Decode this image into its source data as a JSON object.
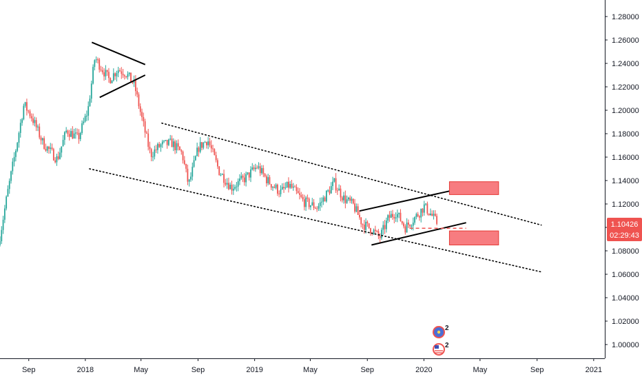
{
  "chart_data": {
    "type": "candlestick",
    "x_tick_labels": [
      "Sep",
      "2018",
      "May",
      "Sep",
      "2019",
      "May",
      "Sep",
      "2020",
      "May",
      "Sep",
      "2021"
    ],
    "x_tick_dates": [
      "2017-09-01",
      "2018-01-01",
      "2018-05-01",
      "2018-09-01",
      "2019-01-01",
      "2019-05-01",
      "2019-09-01",
      "2020-01-01",
      "2020-05-01",
      "2020-09-01",
      "2021-01-01"
    ],
    "y_tick_labels": [
      "1.28000",
      "1.26000",
      "1.24000",
      "1.22000",
      "1.20000",
      "1.18000",
      "1.16000",
      "1.14000",
      "1.12000",
      "1.10000",
      "1.08000",
      "1.06000",
      "1.04000",
      "1.02000",
      "1.00000"
    ],
    "ylim": [
      0.995,
      1.29
    ],
    "xlim": [
      "2017-07-01",
      "2021-01-25"
    ],
    "price_path": [
      [
        "2017-07-01",
        1.085
      ],
      [
        "2017-07-20",
        1.128
      ],
      [
        "2017-08-10",
        1.172
      ],
      [
        "2017-08-25",
        1.205
      ],
      [
        "2017-09-10",
        1.195
      ],
      [
        "2017-10-05",
        1.172
      ],
      [
        "2017-11-05",
        1.158
      ],
      [
        "2017-11-25",
        1.183
      ],
      [
        "2017-12-20",
        1.176
      ],
      [
        "2018-01-10",
        1.2
      ],
      [
        "2018-01-25",
        1.245
      ],
      [
        "2018-02-05",
        1.238
      ],
      [
        "2018-02-25",
        1.226
      ],
      [
        "2018-03-15",
        1.235
      ],
      [
        "2018-04-01",
        1.232
      ],
      [
        "2018-04-20",
        1.222
      ],
      [
        "2018-05-05",
        1.195
      ],
      [
        "2018-05-25",
        1.162
      ],
      [
        "2018-06-15",
        1.17
      ],
      [
        "2018-07-10",
        1.172
      ],
      [
        "2018-08-01",
        1.163
      ],
      [
        "2018-08-15",
        1.136
      ],
      [
        "2018-09-05",
        1.168
      ],
      [
        "2018-09-25",
        1.175
      ],
      [
        "2018-10-20",
        1.148
      ],
      [
        "2018-11-15",
        1.134
      ],
      [
        "2018-12-15",
        1.142
      ],
      [
        "2019-01-10",
        1.152
      ],
      [
        "2019-02-01",
        1.14
      ],
      [
        "2019-03-01",
        1.13
      ],
      [
        "2019-03-20",
        1.136
      ],
      [
        "2019-04-20",
        1.122
      ],
      [
        "2019-05-20",
        1.117
      ],
      [
        "2019-06-25",
        1.138
      ],
      [
        "2019-07-15",
        1.125
      ],
      [
        "2019-08-05",
        1.119
      ],
      [
        "2019-08-25",
        1.103
      ],
      [
        "2019-09-15",
        1.098
      ],
      [
        "2019-10-01",
        1.091
      ],
      [
        "2019-10-20",
        1.108
      ],
      [
        "2019-11-05",
        1.113
      ],
      [
        "2019-11-25",
        1.1
      ],
      [
        "2019-12-20",
        1.11
      ],
      [
        "2020-01-05",
        1.118
      ],
      [
        "2020-01-20",
        1.111
      ],
      [
        "2020-02-01",
        1.104
      ]
    ],
    "drawings": {
      "triangle_upper": [
        [
          "2018-01-15",
          1.258
        ],
        [
          "2018-05-10",
          1.239
        ]
      ],
      "triangle_lower": [
        [
          "2018-02-01",
          1.211
        ],
        [
          "2018-05-10",
          1.23
        ]
      ],
      "channel_upper": [
        [
          "2018-06-15",
          1.189
        ],
        [
          "2020-09-10",
          1.102
        ]
      ],
      "channel_lower": [
        [
          "2018-01-10",
          1.15
        ],
        [
          "2020-09-10",
          1.062
        ]
      ],
      "wedge_upper": [
        [
          "2019-08-15",
          1.114
        ],
        [
          "2020-02-25",
          1.131
        ]
      ],
      "wedge_lower": [
        [
          "2019-09-10",
          1.085
        ],
        [
          "2020-04-01",
          1.104
        ]
      ],
      "support_level": [
        [
          "2019-12-01",
          1.0993
        ],
        [
          "2020-04-01",
          1.0993
        ]
      ],
      "resistance_zone": [
        [
          "2020-02-25",
          1.139
        ],
        [
          "2020-06-10",
          1.128
        ]
      ],
      "support_zone": [
        [
          "2020-02-25",
          1.097
        ],
        [
          "2020-06-10",
          1.085
        ]
      ]
    },
    "grid": false,
    "colors": {
      "up": "#26a69a",
      "down": "#ef5350",
      "zone": "#f77c80",
      "zone_border": "#e53935",
      "dashed": "#ef5350",
      "axis": "#131722",
      "price_label": "#ef5350"
    }
  },
  "price_label": {
    "value": "1.10426",
    "timer": "02:29:43",
    "price": 1.10426
  },
  "event_icons": [
    {
      "badge": "2",
      "icon": "flag-eu-icon"
    },
    {
      "badge": "2",
      "icon": "flag-us-icon"
    }
  ]
}
